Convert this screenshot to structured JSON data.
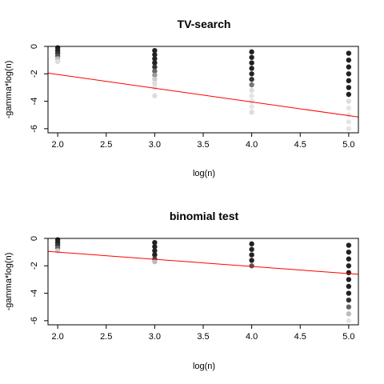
{
  "chart_data": [
    {
      "type": "scatter",
      "title": "TV-search",
      "xlabel": "log(n)",
      "ylabel": "-gamma*log(n)",
      "xlim": [
        1.9,
        5.1
      ],
      "ylim": [
        -6.3,
        0.0
      ],
      "xticks": [
        "2.0",
        "2.5",
        "3.0",
        "3.5",
        "4.0",
        "4.5",
        "5.0"
      ],
      "yticks": [
        "0",
        "-2",
        "-4",
        "-6"
      ],
      "grid": false,
      "points": [
        {
          "x": 2.0,
          "y": -0.1,
          "color": "#222222"
        },
        {
          "x": 2.0,
          "y": -0.3,
          "color": "#222222"
        },
        {
          "x": 2.0,
          "y": -0.5,
          "color": "#333333"
        },
        {
          "x": 2.0,
          "y": -0.7,
          "color": "#555555"
        },
        {
          "x": 2.0,
          "y": -0.9,
          "color": "#bbbbbb"
        },
        {
          "x": 2.0,
          "y": -1.1,
          "color": "#dddddd"
        },
        {
          "x": 3.0,
          "y": -0.3,
          "color": "#222222"
        },
        {
          "x": 3.0,
          "y": -0.6,
          "color": "#222222"
        },
        {
          "x": 3.0,
          "y": -0.9,
          "color": "#222222"
        },
        {
          "x": 3.0,
          "y": -1.2,
          "color": "#222222"
        },
        {
          "x": 3.0,
          "y": -1.5,
          "color": "#333333"
        },
        {
          "x": 3.0,
          "y": -1.8,
          "color": "#666666"
        },
        {
          "x": 3.0,
          "y": -2.1,
          "color": "#999999"
        },
        {
          "x": 3.0,
          "y": -2.4,
          "color": "#cccccc"
        },
        {
          "x": 3.0,
          "y": -2.7,
          "color": "#dddddd"
        },
        {
          "x": 3.0,
          "y": -3.0,
          "color": "#e5e5e5"
        },
        {
          "x": 3.0,
          "y": -3.6,
          "color": "#dddddd"
        },
        {
          "x": 4.0,
          "y": -0.4,
          "color": "#222222"
        },
        {
          "x": 4.0,
          "y": -0.8,
          "color": "#222222"
        },
        {
          "x": 4.0,
          "y": -1.2,
          "color": "#222222"
        },
        {
          "x": 4.0,
          "y": -1.6,
          "color": "#222222"
        },
        {
          "x": 4.0,
          "y": -2.0,
          "color": "#222222"
        },
        {
          "x": 4.0,
          "y": -2.4,
          "color": "#333333"
        },
        {
          "x": 4.0,
          "y": -2.8,
          "color": "#777777"
        },
        {
          "x": 4.0,
          "y": -3.2,
          "color": "#dddddd"
        },
        {
          "x": 4.0,
          "y": -3.6,
          "color": "#e5e5e5"
        },
        {
          "x": 4.0,
          "y": -4.0,
          "color": "#e5e5e5"
        },
        {
          "x": 4.0,
          "y": -4.4,
          "color": "#e5e5e5"
        },
        {
          "x": 4.0,
          "y": -4.8,
          "color": "#dddddd"
        },
        {
          "x": 5.0,
          "y": -0.5,
          "color": "#222222"
        },
        {
          "x": 5.0,
          "y": -1.0,
          "color": "#222222"
        },
        {
          "x": 5.0,
          "y": -1.5,
          "color": "#222222"
        },
        {
          "x": 5.0,
          "y": -2.0,
          "color": "#222222"
        },
        {
          "x": 5.0,
          "y": -2.5,
          "color": "#222222"
        },
        {
          "x": 5.0,
          "y": -3.0,
          "color": "#222222"
        },
        {
          "x": 5.0,
          "y": -3.5,
          "color": "#222222"
        },
        {
          "x": 5.0,
          "y": -4.0,
          "color": "#dddddd"
        },
        {
          "x": 5.0,
          "y": -4.5,
          "color": "#e5e5e5"
        },
        {
          "x": 5.0,
          "y": -5.0,
          "color": "#e5e5e5"
        },
        {
          "x": 5.0,
          "y": -5.5,
          "color": "#e5e5e5"
        },
        {
          "x": 5.0,
          "y": -6.0,
          "color": "#e5e5e5"
        }
      ],
      "fit_line": {
        "x": [
          1.9,
          5.1
        ],
        "y": [
          -1.95,
          -5.15
        ],
        "color": "#ff0000"
      }
    },
    {
      "type": "scatter",
      "title": "binomial test",
      "xlabel": "log(n)",
      "ylabel": "-gamma*log(n)",
      "xlim": [
        1.9,
        5.1
      ],
      "ylim": [
        -6.3,
        0.0
      ],
      "xticks": [
        "2.0",
        "2.5",
        "3.0",
        "3.5",
        "4.0",
        "4.5",
        "5.0"
      ],
      "yticks": [
        "0",
        "-2",
        "-4",
        "-6"
      ],
      "grid": false,
      "points": [
        {
          "x": 2.0,
          "y": -0.1,
          "color": "#222222"
        },
        {
          "x": 2.0,
          "y": -0.3,
          "color": "#222222"
        },
        {
          "x": 2.0,
          "y": -0.5,
          "color": "#333333"
        },
        {
          "x": 2.0,
          "y": -0.7,
          "color": "#666666"
        },
        {
          "x": 2.0,
          "y": -0.9,
          "color": "#cccccc"
        },
        {
          "x": 3.0,
          "y": -0.3,
          "color": "#222222"
        },
        {
          "x": 3.0,
          "y": -0.6,
          "color": "#222222"
        },
        {
          "x": 3.0,
          "y": -0.9,
          "color": "#222222"
        },
        {
          "x": 3.0,
          "y": -1.2,
          "color": "#222222"
        },
        {
          "x": 3.0,
          "y": -1.5,
          "color": "#444444"
        },
        {
          "x": 3.0,
          "y": -1.7,
          "color": "#bbbbbb"
        },
        {
          "x": 4.0,
          "y": -0.4,
          "color": "#222222"
        },
        {
          "x": 4.0,
          "y": -0.8,
          "color": "#222222"
        },
        {
          "x": 4.0,
          "y": -1.2,
          "color": "#222222"
        },
        {
          "x": 4.0,
          "y": -1.6,
          "color": "#222222"
        },
        {
          "x": 4.0,
          "y": -2.0,
          "color": "#555555"
        },
        {
          "x": 5.0,
          "y": -0.5,
          "color": "#222222"
        },
        {
          "x": 5.0,
          "y": -1.0,
          "color": "#222222"
        },
        {
          "x": 5.0,
          "y": -1.5,
          "color": "#222222"
        },
        {
          "x": 5.0,
          "y": -2.0,
          "color": "#222222"
        },
        {
          "x": 5.0,
          "y": -2.5,
          "color": "#222222"
        },
        {
          "x": 5.0,
          "y": -3.0,
          "color": "#222222"
        },
        {
          "x": 5.0,
          "y": -3.5,
          "color": "#222222"
        },
        {
          "x": 5.0,
          "y": -4.0,
          "color": "#222222"
        },
        {
          "x": 5.0,
          "y": -4.5,
          "color": "#333333"
        },
        {
          "x": 5.0,
          "y": -5.0,
          "color": "#666666"
        },
        {
          "x": 5.0,
          "y": -5.5,
          "color": "#bbbbbb"
        },
        {
          "x": 5.0,
          "y": -6.0,
          "color": "#e5e5e5"
        }
      ],
      "fit_line": {
        "x": [
          1.9,
          5.1
        ],
        "y": [
          -0.95,
          -2.62
        ],
        "color": "#ff0000"
      }
    }
  ]
}
